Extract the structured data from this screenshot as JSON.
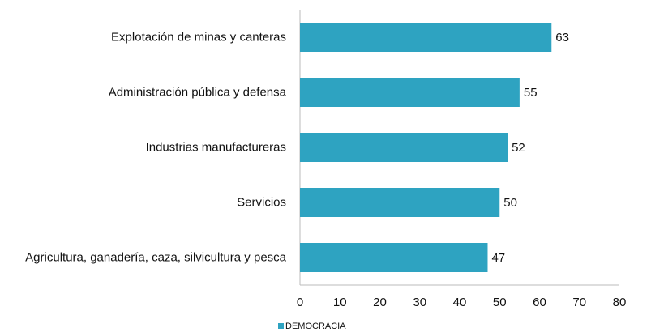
{
  "chart_data": {
    "type": "bar",
    "orientation": "horizontal",
    "categories": [
      "Explotación de minas y canteras",
      "Administración pública y defensa",
      "Industrias manufactureras",
      "Servicios",
      "Agricultura, ganadería, caza, silvicultura y pesca"
    ],
    "series": [
      {
        "name": "DEMOCRACIA",
        "color": "#2ea3c1",
        "values": [
          63,
          55,
          52,
          50,
          47
        ]
      }
    ],
    "xlim": [
      0,
      80
    ],
    "xticks": [
      0,
      10,
      20,
      30,
      40,
      50,
      60,
      70,
      80
    ],
    "grid": false,
    "legend": "bottom"
  }
}
